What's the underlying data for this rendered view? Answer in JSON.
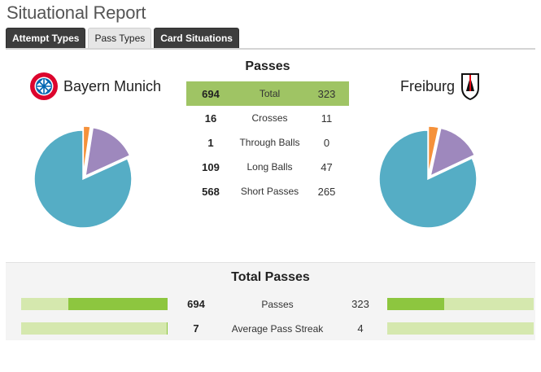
{
  "header": {
    "title": "Situational Report"
  },
  "tabs": [
    {
      "label": "Attempt Types",
      "active": false
    },
    {
      "label": "Pass Types",
      "active": true
    },
    {
      "label": "Card Situations",
      "active": false
    }
  ],
  "teams": {
    "home": {
      "name": "Bayern Munich",
      "crest": "bayern-munich-crest"
    },
    "away": {
      "name": "Freiburg",
      "crest": "freiburg-crest"
    }
  },
  "passes": {
    "title": "Passes",
    "rows": [
      {
        "label": "Total",
        "home": 694,
        "away": 323,
        "highlight": true
      },
      {
        "label": "Crosses",
        "home": 16,
        "away": 11
      },
      {
        "label": "Through Balls",
        "home": 1,
        "away": 0
      },
      {
        "label": "Long Balls",
        "home": 109,
        "away": 47
      },
      {
        "label": "Short Passes",
        "home": 568,
        "away": 265
      }
    ]
  },
  "colors": {
    "short_passes": "#55adc5",
    "long_balls": "#9e88bd",
    "crosses": "#f5913a",
    "through_balls": "#8dc63f",
    "bar_fill": "#8dc63f",
    "bar_track": "#d5e8ae",
    "total_row": "#9fc464"
  },
  "chart_data": [
    {
      "type": "pie",
      "team": "Bayern Munich",
      "categories": [
        "Short Passes",
        "Long Balls",
        "Crosses",
        "Through Balls"
      ],
      "values": [
        568,
        109,
        16,
        1
      ],
      "exploded": "Short Passes"
    },
    {
      "type": "pie",
      "team": "Freiburg",
      "categories": [
        "Short Passes",
        "Long Balls",
        "Crosses",
        "Through Balls"
      ],
      "values": [
        265,
        47,
        11,
        0
      ],
      "exploded": "Short Passes"
    }
  ],
  "totals": {
    "title": "Total Passes",
    "rows": [
      {
        "label": "Passes",
        "home": 694,
        "away": 323,
        "home_fraction": 0.68,
        "away_fraction": 0.39
      },
      {
        "label": "Average Pass Streak",
        "home": 7,
        "away": 4,
        "home_fraction": 0.005,
        "away_fraction": 0
      }
    ]
  }
}
